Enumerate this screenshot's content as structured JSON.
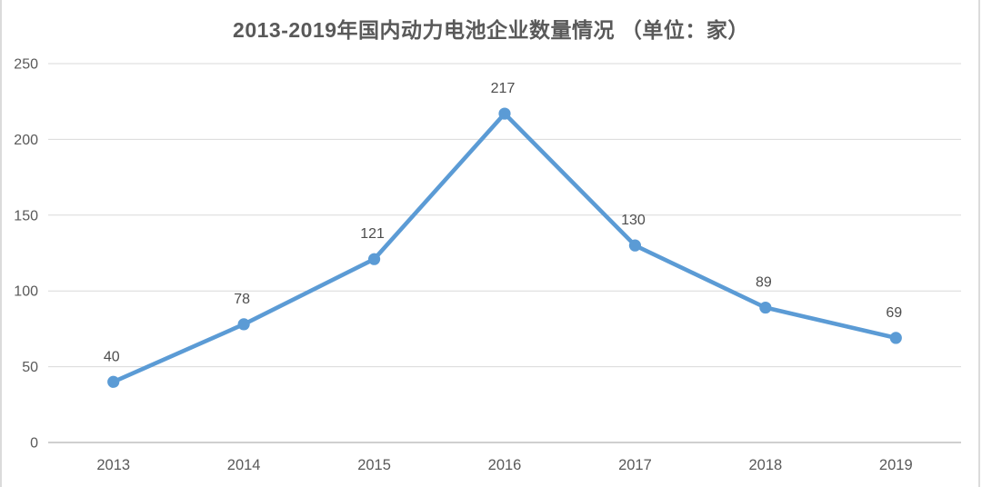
{
  "chart_data": {
    "type": "line",
    "title": "2013-2019年国内动力电池企业数量情况 （单位：家）",
    "categories": [
      "2013",
      "2014",
      "2015",
      "2016",
      "2017",
      "2018",
      "2019"
    ],
    "values": [
      40,
      78,
      121,
      217,
      130,
      89,
      69
    ],
    "series_name": "国内动力电池企业数量",
    "xlabel": "",
    "ylabel": "",
    "ylim": [
      0,
      250
    ],
    "yticks": [
      0,
      50,
      100,
      150,
      200,
      250
    ],
    "grid": true,
    "legend_position": "none",
    "data_labels_shown": true,
    "colors": {
      "line": "#5B9BD5",
      "marker": "#5B9BD5",
      "title_text": "#595959",
      "axis_tick_text": "#595959",
      "data_label_text": "#4d4d4d",
      "gridline": "#d9d9d9",
      "axis_line": "#bfbfbf",
      "background": "#ffffff",
      "edge_border": "#dbdbdb"
    }
  }
}
